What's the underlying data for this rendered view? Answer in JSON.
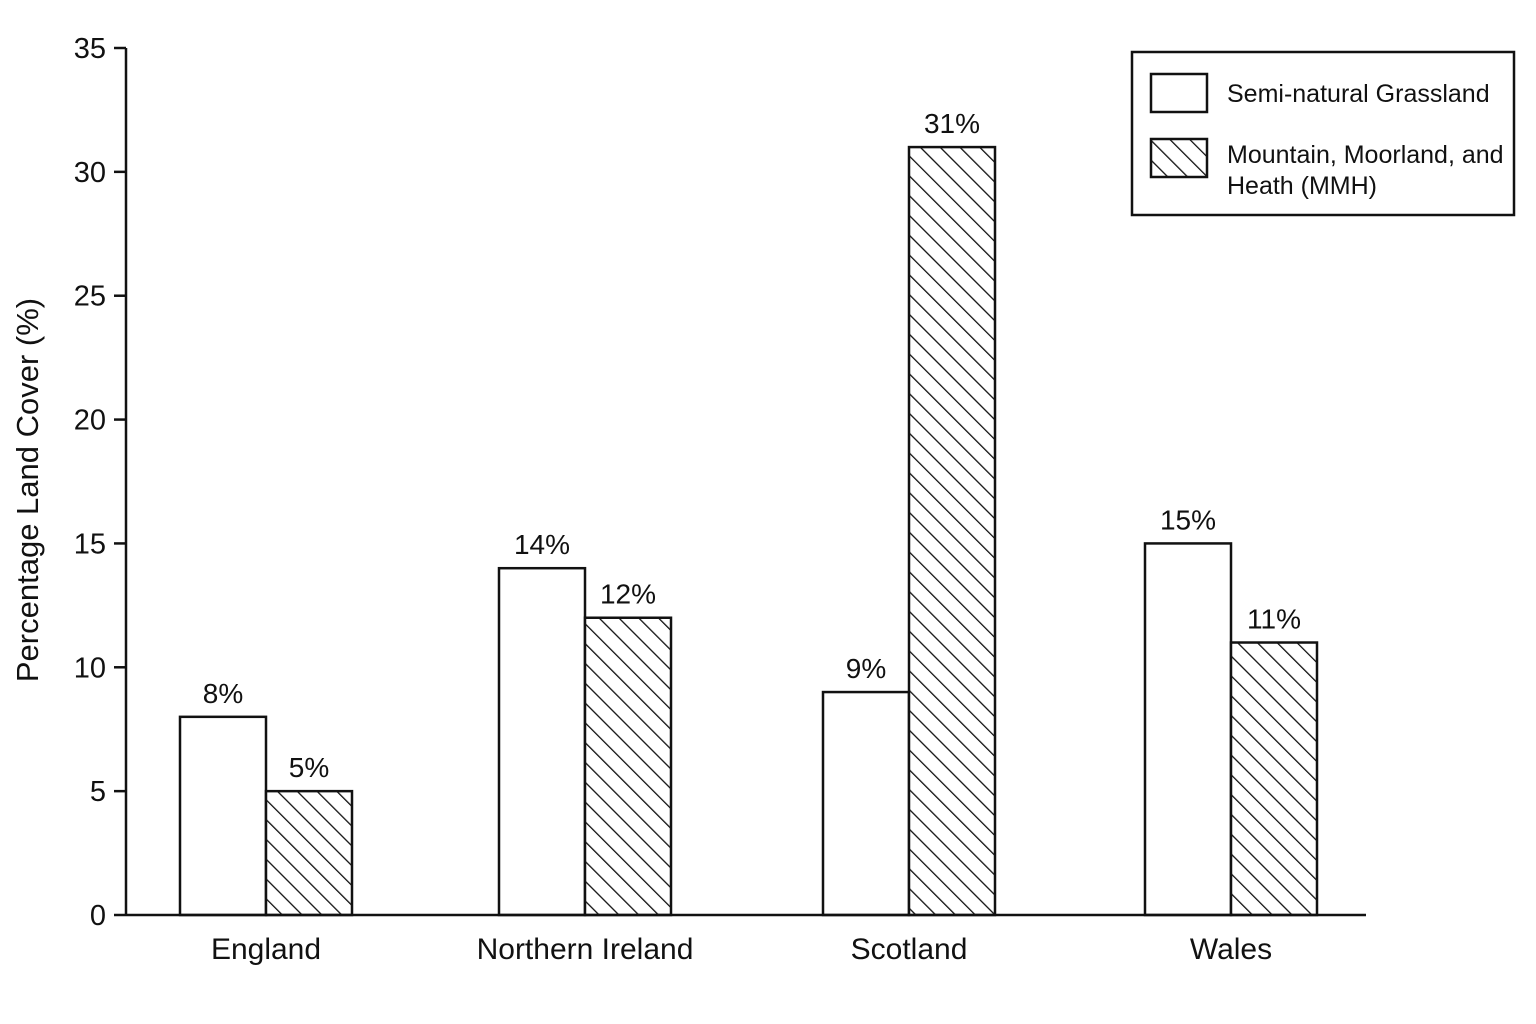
{
  "chart_data": {
    "type": "bar",
    "title": "",
    "xlabel": "",
    "ylabel": "Percentage Land Cover (%)",
    "ylim": [
      0,
      35
    ],
    "yticks": [
      0,
      5,
      10,
      15,
      20,
      25,
      30,
      35
    ],
    "grid": false,
    "legend_position": "top-right",
    "categories": [
      "England",
      "Northern Ireland",
      "Scotland",
      "Wales"
    ],
    "series": [
      {
        "name": "Semi-natural Grassland",
        "values": [
          8,
          14,
          9,
          15
        ],
        "labels": [
          "8%",
          "14%",
          "9%",
          "15%"
        ],
        "fill": "plain",
        "color": "#ffffff"
      },
      {
        "name": "Mountain, Moorland, and Heath (MMH)",
        "legend_lines": [
          "Mountain, Moorland, and",
          "Heath (MMH)"
        ],
        "values": [
          5,
          12,
          31,
          11
        ],
        "labels": [
          "5%",
          "12%",
          "31%",
          "11%"
        ],
        "fill": "hatched",
        "color": "#ffffff"
      }
    ]
  }
}
